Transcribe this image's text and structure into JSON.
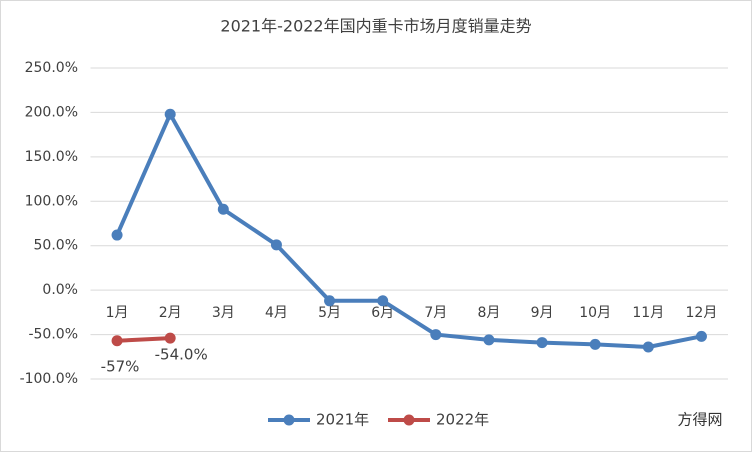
{
  "chart_data": {
    "type": "line",
    "title": "2021年-2022年国内重卡市场月度销量走势",
    "categories": [
      "1月",
      "2月",
      "3月",
      "4月",
      "5月",
      "6月",
      "7月",
      "8月",
      "9月",
      "10月",
      "11月",
      "12月"
    ],
    "series": [
      {
        "name": "2021年",
        "color": "#4a7ebb",
        "values": [
          62,
          198,
          91,
          51,
          -12,
          -12,
          -50,
          -56,
          -59,
          -61,
          -64,
          -52
        ]
      },
      {
        "name": "2022年",
        "color": "#be4b48",
        "values": [
          -57,
          -54,
          null,
          null,
          null,
          null,
          null,
          null,
          null,
          null,
          null,
          null
        ],
        "value_labels": [
          "-57%",
          "-54.0%",
          null,
          null,
          null,
          null,
          null,
          null,
          null,
          null,
          null,
          null
        ]
      }
    ],
    "ylim": [
      -100,
      250
    ],
    "yticks": [
      {
        "value": -100,
        "label": "-100.0%"
      },
      {
        "value": -50,
        "label": "-50.0%"
      },
      {
        "value": 0,
        "label": "0.0%"
      },
      {
        "value": 50,
        "label": "50.0%"
      },
      {
        "value": 100,
        "label": "100.0%"
      },
      {
        "value": 150,
        "label": "150.0%"
      },
      {
        "value": 200,
        "label": "200.0%"
      },
      {
        "value": 250,
        "label": "250.0%"
      }
    ],
    "grid": true,
    "legend": "bottom",
    "watermark": "方得网"
  }
}
